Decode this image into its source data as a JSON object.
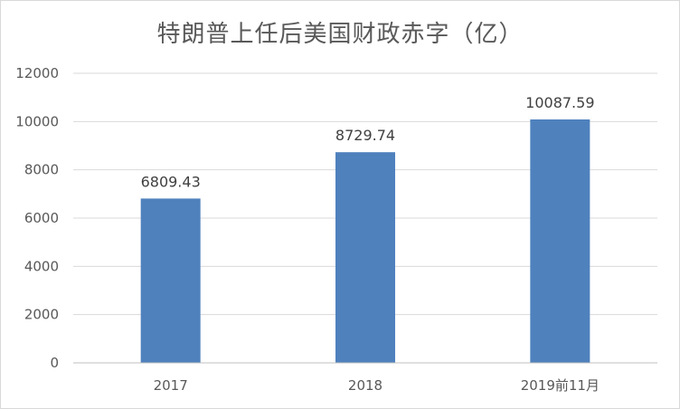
{
  "chart_data": {
    "type": "bar",
    "title": "特朗普上任后美国财政赤字（亿）",
    "categories": [
      "2017",
      "2018",
      "2019前11月"
    ],
    "values": [
      6809.43,
      8729.74,
      10087.59
    ],
    "data_labels": [
      "6809.43",
      "8729.74",
      "10087.59"
    ],
    "y_ticks": [
      "0",
      "2000",
      "4000",
      "6000",
      "8000",
      "10000",
      "12000"
    ],
    "ylim": [
      0,
      12000
    ],
    "grid": true,
    "legend": "none",
    "bar_color": "#4f81bd",
    "grid_color": "#d9d9d9"
  }
}
